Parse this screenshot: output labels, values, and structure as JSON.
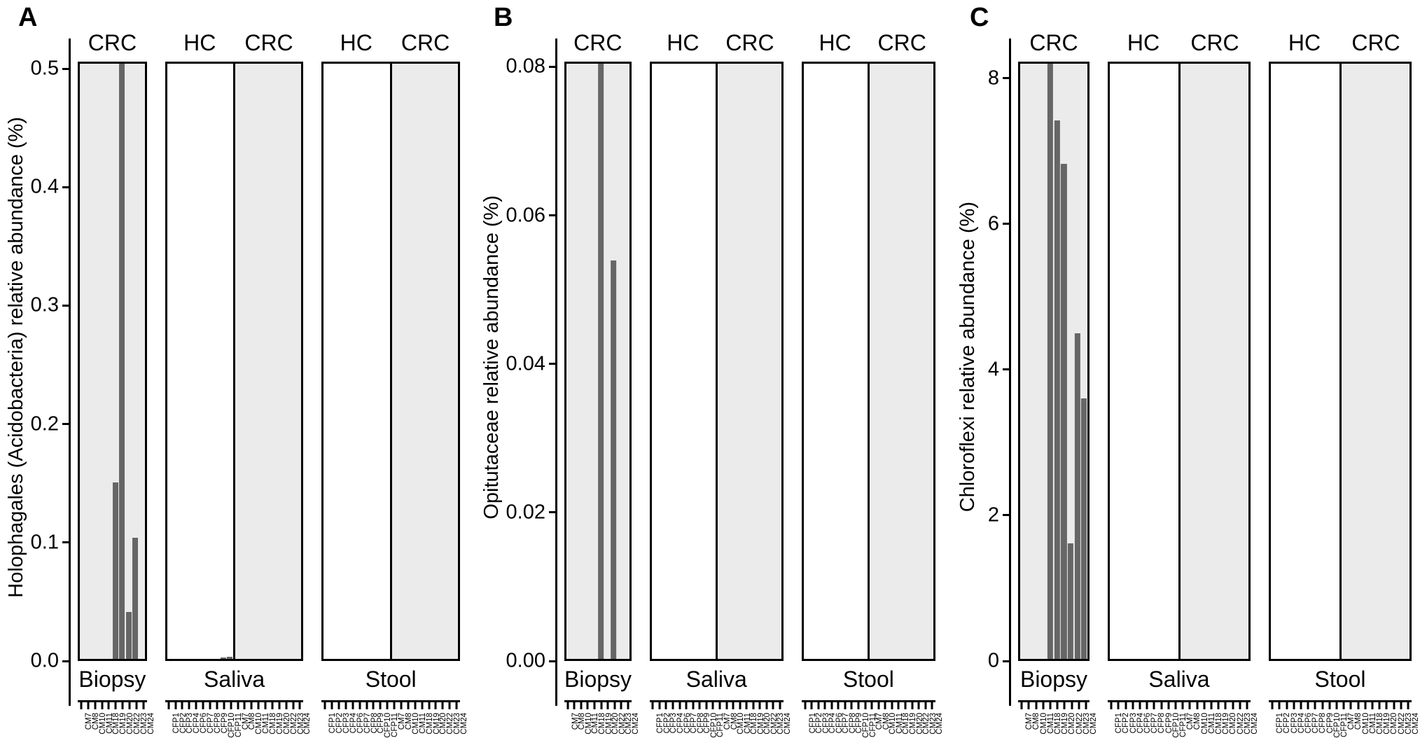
{
  "colors": {
    "bar": "#666666",
    "crc_box_fill": "#ebebeb",
    "hc_box_fill": "#ffffff",
    "border": "#000000",
    "text": "#000000",
    "background": "#ffffff"
  },
  "sample_sets": {
    "hc": [
      "CFP1",
      "CFP2",
      "CFP3",
      "CFP4",
      "CFP6",
      "CFP7",
      "CFP8",
      "CFP9",
      "CFP10",
      "CFP11"
    ],
    "crc": [
      "CM7",
      "CM8",
      "CM10",
      "CM11",
      "CM18",
      "CM19",
      "CM20",
      "CM22",
      "CM23",
      "CM24"
    ]
  },
  "chart_data": [
    {
      "type": "bar",
      "panel_label": "A",
      "ylabel": "Holophagales (Acidobacteria) relative abundance (%)",
      "ytick_values": [
        0.0,
        0.1,
        0.2,
        0.3,
        0.4,
        0.5
      ],
      "ytick_labels": [
        "0.0",
        "0.1",
        "0.2",
        "0.3",
        "0.4",
        "0.5"
      ],
      "ylim": [
        0,
        0.5
      ],
      "axis_top_value": 0.506,
      "grid": "off",
      "groups": [
        {
          "name": "Biopsy",
          "subgroups": [
            {
              "condition": "CRC",
              "shaded": true,
              "sample_set": "crc",
              "values": [
                0,
                0,
                0,
                0,
                0,
                0.15,
                null,
                0.04,
                0.103,
                0
              ],
              "clipped": [
                "CM20"
              ]
            }
          ]
        },
        {
          "name": "Saliva",
          "subgroups": [
            {
              "condition": "HC",
              "shaded": false,
              "sample_set": "hc",
              "values": [
                0,
                0,
                0,
                0,
                0,
                0,
                0,
                0,
                0.001,
                0.002
              ],
              "clipped": []
            },
            {
              "condition": "CRC",
              "shaded": true,
              "sample_set": "crc",
              "values": [
                0,
                0,
                0,
                0,
                0,
                0,
                0,
                0,
                0,
                0
              ],
              "clipped": []
            }
          ]
        },
        {
          "name": "Stool",
          "subgroups": [
            {
              "condition": "HC",
              "shaded": false,
              "sample_set": "hc",
              "values": [
                0,
                0,
                0,
                0,
                0,
                0,
                0,
                0,
                0,
                0
              ],
              "clipped": []
            },
            {
              "condition": "CRC",
              "shaded": true,
              "sample_set": "crc",
              "values": [
                0,
                0,
                0,
                0,
                0,
                0,
                0,
                0,
                0,
                0
              ],
              "clipped": []
            }
          ]
        }
      ]
    },
    {
      "type": "bar",
      "panel_label": "B",
      "ylabel": "Opitutaceae relative abundance (%)",
      "ytick_values": [
        0.0,
        0.02,
        0.04,
        0.06,
        0.08
      ],
      "ytick_labels": [
        "0.00",
        "0.02",
        "0.04",
        "0.06",
        "0.08"
      ],
      "ylim": [
        0,
        0.08
      ],
      "axis_top_value": 0.0807,
      "grid": "off",
      "groups": [
        {
          "name": "Biopsy",
          "subgroups": [
            {
              "condition": "CRC",
              "shaded": true,
              "sample_set": "crc",
              "values": [
                0,
                0,
                0,
                0,
                0,
                null,
                0,
                0.054,
                0,
                0
              ],
              "clipped": [
                "CM19"
              ]
            }
          ]
        },
        {
          "name": "Saliva",
          "subgroups": [
            {
              "condition": "HC",
              "shaded": false,
              "sample_set": "hc",
              "values": [
                0,
                0,
                0,
                0,
                0,
                0,
                0,
                0,
                0,
                0
              ],
              "clipped": []
            },
            {
              "condition": "CRC",
              "shaded": true,
              "sample_set": "crc",
              "values": [
                0,
                0,
                0,
                0,
                0,
                0,
                0,
                0,
                0,
                0
              ],
              "clipped": []
            }
          ]
        },
        {
          "name": "Stool",
          "subgroups": [
            {
              "condition": "HC",
              "shaded": false,
              "sample_set": "hc",
              "values": [
                0,
                0,
                0,
                0,
                0,
                0,
                0,
                0,
                0,
                0
              ],
              "clipped": []
            },
            {
              "condition": "CRC",
              "shaded": true,
              "sample_set": "crc",
              "values": [
                0,
                0,
                0,
                0,
                0,
                0,
                0,
                0,
                0,
                0
              ],
              "clipped": []
            }
          ]
        }
      ]
    },
    {
      "type": "bar",
      "panel_label": "C",
      "ylabel": "Chloroflexi relative abundance (%)",
      "ytick_values": [
        0,
        2,
        4,
        6,
        8
      ],
      "ytick_labels": [
        "0",
        "2",
        "4",
        "6",
        "8"
      ],
      "ylim": [
        0,
        8
      ],
      "axis_top_value": 8.23,
      "grid": "off",
      "groups": [
        {
          "name": "Biopsy",
          "subgroups": [
            {
              "condition": "CRC",
              "shaded": true,
              "sample_set": "crc",
              "values": [
                0,
                0,
                0,
                0,
                null,
                7.45,
                6.85,
                1.6,
                4.5,
                3.6
              ],
              "clipped": [
                "CM18"
              ]
            }
          ]
        },
        {
          "name": "Saliva",
          "subgroups": [
            {
              "condition": "HC",
              "shaded": false,
              "sample_set": "hc",
              "values": [
                0,
                0,
                0,
                0,
                0,
                0,
                0,
                0,
                0,
                0
              ],
              "clipped": []
            },
            {
              "condition": "CRC",
              "shaded": true,
              "sample_set": "crc",
              "values": [
                0,
                0,
                0,
                0,
                0,
                0,
                0,
                0,
                0,
                0
              ],
              "clipped": []
            }
          ]
        },
        {
          "name": "Stool",
          "subgroups": [
            {
              "condition": "HC",
              "shaded": false,
              "sample_set": "hc",
              "values": [
                0,
                0,
                0,
                0,
                0,
                0,
                0,
                0,
                0,
                0
              ],
              "clipped": []
            },
            {
              "condition": "CRC",
              "shaded": true,
              "sample_set": "crc",
              "values": [
                0,
                0,
                0,
                0,
                0,
                0,
                0,
                0,
                0,
                0
              ],
              "clipped": []
            }
          ]
        }
      ]
    }
  ]
}
